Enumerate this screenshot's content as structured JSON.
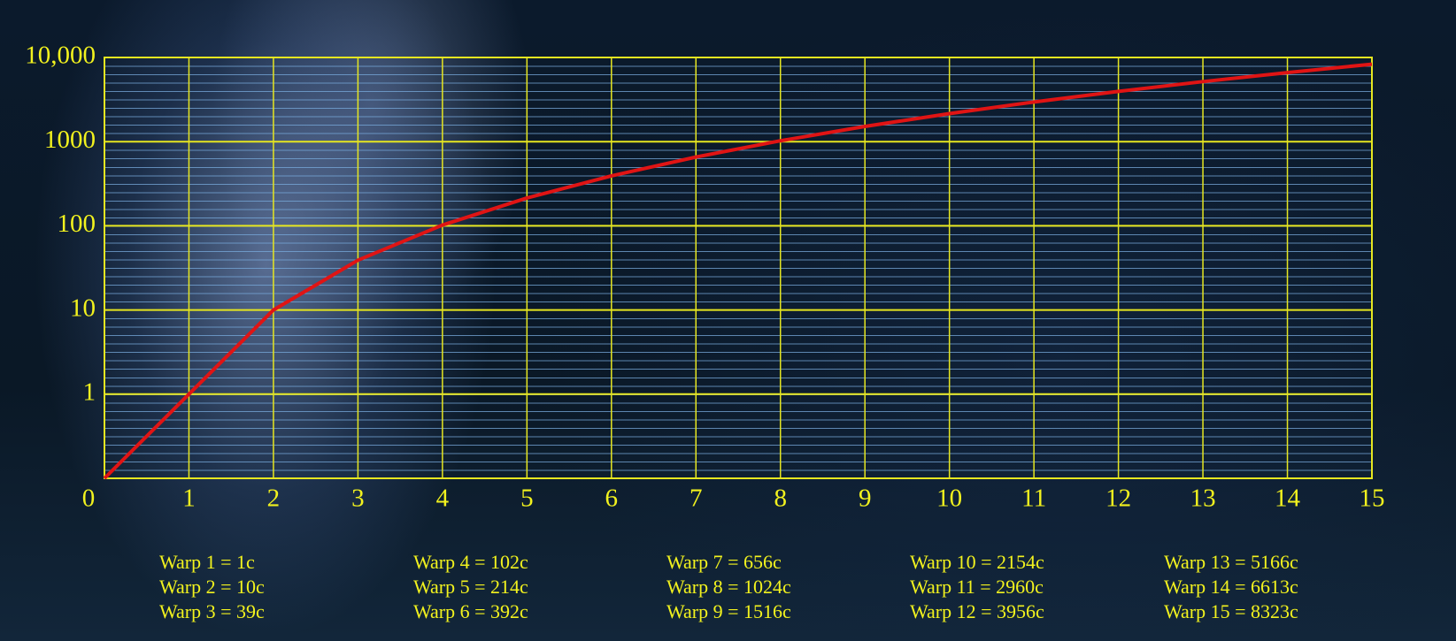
{
  "chart_data": {
    "type": "line",
    "x": [
      0,
      1,
      2,
      3,
      4,
      5,
      6,
      7,
      8,
      9,
      10,
      11,
      12,
      13,
      14,
      15
    ],
    "series": [
      {
        "color": "#e01414",
        "values": [
          0.1,
          1,
          10,
          39,
          102,
          214,
          392,
          656,
          1024,
          1516,
          2154,
          2960,
          3956,
          5166,
          6613,
          8323
        ],
        "value_labels": [
          null,
          "Warp 1 =  1c",
          "Warp 2 =  10c",
          "Warp 3 =  39c",
          "Warp 4 =  102c",
          "Warp 5 =  214c",
          "Warp 6 =  392c",
          "Warp 7 =  656c",
          "Warp 8 =  1024c",
          "Warp 9 =  1516c",
          "Warp 10 =  2154c",
          "Warp 11 =  2960c",
          "Warp 12 =  3956c",
          "Warp 13 =  5166c",
          "Warp 14 =  6613c",
          "Warp 15 =  8323c"
        ]
      }
    ],
    "xlim": [
      0,
      15
    ],
    "xticks": [
      0,
      1,
      2,
      3,
      4,
      5,
      6,
      7,
      8,
      9,
      10,
      11,
      12,
      13,
      14,
      15
    ],
    "ylim": [
      0.1,
      10000
    ],
    "yticks": [
      1,
      10,
      100,
      1000,
      {
        "value": 10000,
        "label": "10,000"
      }
    ],
    "log_y": true,
    "grid": true,
    "grid_color": "#e6e620"
  }
}
